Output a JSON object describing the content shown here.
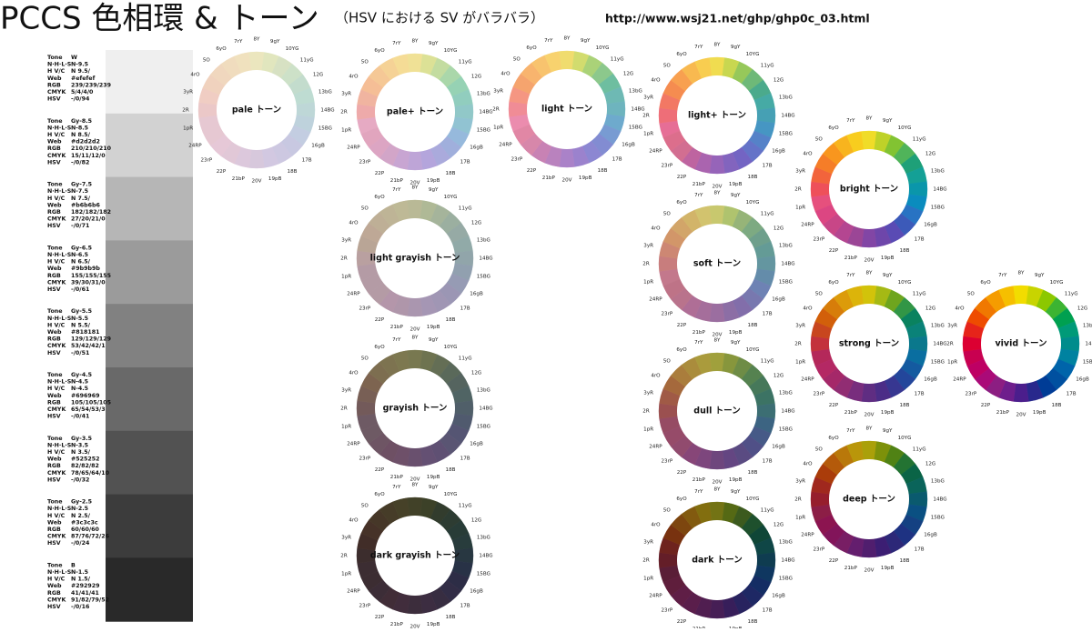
{
  "header": {
    "title": "PCCS 色相環 & トーン",
    "subtitle": "（HSV における SV がバラバラ）",
    "url": "http://www.wsj21.net/ghp/ghp0c_03.html"
  },
  "gray_scale": {
    "field_labels": [
      "Tone",
      "N·H·L·S",
      "H V/C",
      "Web",
      "RGB",
      "CMYK",
      "HSV"
    ],
    "rows": [
      {
        "tone": "W",
        "nhls": "N-9.5",
        "hvc": "N 9.5/",
        "web": "#efefef",
        "rgb": "239/239/239",
        "cmyk": "5/4/4/0",
        "hsv": "-/0/94"
      },
      {
        "tone": "Gy-8.5",
        "nhls": "N-8.5",
        "hvc": "N 8.5/",
        "web": "#d2d2d2",
        "rgb": "210/210/210",
        "cmyk": "15/11/12/0",
        "hsv": "-/0/82"
      },
      {
        "tone": "Gy-7.5",
        "nhls": "N-7.5",
        "hvc": "N 7.5/",
        "web": "#b6b6b6",
        "rgb": "182/182/182",
        "cmyk": "27/20/21/0",
        "hsv": "-/0/71"
      },
      {
        "tone": "Gy-6.5",
        "nhls": "N-6.5",
        "hvc": "N 6.5/",
        "web": "#9b9b9b",
        "rgb": "155/155/155",
        "cmyk": "39/30/31/0",
        "hsv": "-/0/61"
      },
      {
        "tone": "Gy-5.5",
        "nhls": "N-5.5",
        "hvc": "N 5.5/",
        "web": "#818181",
        "rgb": "129/129/129",
        "cmyk": "53/42/42/1",
        "hsv": "-/0/51"
      },
      {
        "tone": "Gy-4.5",
        "nhls": "N-4.5",
        "hvc": "N-4.5",
        "web": "#696969",
        "rgb": "105/105/105",
        "cmyk": "65/54/53/3",
        "hsv": "-/0/41"
      },
      {
        "tone": "Gy-3.5",
        "nhls": "N-3.5",
        "hvc": "N 3.5/",
        "web": "#525252",
        "rgb": "82/82/82",
        "cmyk": "78/65/64/10",
        "hsv": "-/0/32"
      },
      {
        "tone": "Gy-2.5",
        "nhls": "N-2.5",
        "hvc": "N 2.5/",
        "web": "#3c3c3c",
        "rgb": "60/60/60",
        "cmyk": "87/76/72/26",
        "hsv": "-/0/24"
      },
      {
        "tone": "B",
        "nhls": "N-1.5",
        "hvc": "N 1.5/",
        "web": "#292929",
        "rgb": "41/41/41",
        "cmyk": "91/82/79/52",
        "hsv": "-/0/16"
      }
    ]
  },
  "hue_labels": [
    "1pR",
    "2R",
    "3yR",
    "4rO",
    "5O",
    "6yO",
    "7rY",
    "8Y",
    "9gY",
    "10YG",
    "11yG",
    "12G",
    "13bG",
    "14BG",
    "15BG",
    "16gB",
    "17B",
    "18B",
    "19pB",
    "20V",
    "21bP",
    "22P",
    "23rP",
    "24RP"
  ],
  "wheels": [
    {
      "name": "pale トーン",
      "colors": [
        "#e6c8d2",
        "#ebc8c8",
        "#f0cdc3",
        "#f0d2be",
        "#f0d7be",
        "#f0dcbe",
        "#f0e1be",
        "#ebe6be",
        "#e1e6be",
        "#d7e1c3",
        "#cde1c8",
        "#c3dccd",
        "#bedcd2",
        "#bed7d7",
        "#bed2dc",
        "#c3cde1",
        "#c8c8e1",
        "#cdc8e1",
        "#d2c8e1",
        "#d7c8dc",
        "#dcc8dc",
        "#e1c8d7",
        "#e6c8d7",
        "#e6c8d2"
      ]
    },
    {
      "name": "pale+ トーン",
      "colors": [
        "#e6aac3",
        "#eeaaaa",
        "#f0b4a0",
        "#f5be96",
        "#f5c896",
        "#f5d296",
        "#f5dc96",
        "#f0e196",
        "#dce196",
        "#c3dca0",
        "#aad7aa",
        "#96d2b4",
        "#91cdbe",
        "#91c8c8",
        "#91c3d2",
        "#96b9dc",
        "#a0afdc",
        "#aaaadc",
        "#b4a5dc",
        "#bea5d7",
        "#c8a5d2",
        "#d2a5c8",
        "#dca5c3",
        "#e1a5be"
      ]
    },
    {
      "name": "light トーン",
      "colors": [
        "#eb8cae",
        "#f08c96",
        "#f59682",
        "#f5a46e",
        "#f8b46e",
        "#f8c36e",
        "#f8d26e",
        "#f0dc6e",
        "#d2dc6e",
        "#aad278",
        "#8cc88c",
        "#6ebea0",
        "#6eb9b4",
        "#6eb4be",
        "#6eaacd",
        "#789bd2",
        "#828cd2",
        "#8c87d2",
        "#9b82cd",
        "#aa82c8",
        "#b982be",
        "#c882b4",
        "#d787aa",
        "#e187a5"
      ]
    },
    {
      "name": "light+ トーン",
      "colors": [
        "#e66e96",
        "#ee6e78",
        "#f27864",
        "#f58c50",
        "#f8a050",
        "#f8b950",
        "#f8cd50",
        "#f0dc50",
        "#c8d750",
        "#96c85a",
        "#6eb978",
        "#4baa8c",
        "#46aaa5",
        "#46a0b4",
        "#4696c3",
        "#5582c8",
        "#6473c8",
        "#7364c3",
        "#8264be",
        "#9664b9",
        "#aa64af",
        "#be64a0",
        "#d26e91",
        "#dc6e8c"
      ]
    },
    {
      "name": "bright トーン",
      "colors": [
        "#e6507d",
        "#ee505a",
        "#f2643c",
        "#f57d28",
        "#f8961e",
        "#f8b41e",
        "#f8cd1e",
        "#f0dc28",
        "#bed228",
        "#82c332",
        "#50b45a",
        "#1ea078",
        "#14a096",
        "#0a96aa",
        "#0a8cbe",
        "#2873c3",
        "#3c5ab9",
        "#5a4bb4",
        "#6e46aa",
        "#8246a5",
        "#9b4696",
        "#b44691",
        "#c84687",
        "#dc4682"
      ]
    },
    {
      "name": "light grayish トーン",
      "colors": [
        "#b49ba5",
        "#b9a0a0",
        "#b9a596",
        "#bea896",
        "#beaf96",
        "#beb496",
        "#beb996",
        "#b9b996",
        "#afb996",
        "#a5b49b",
        "#9bafa0",
        "#96aaa5",
        "#91aaa8",
        "#91a5aa",
        "#91a0af",
        "#969bb4",
        "#9b96b4",
        "#a096b4",
        "#a596b4",
        "#aa96af",
        "#af96aa",
        "#b496aa",
        "#b49ba5",
        "#b49ba5"
      ]
    },
    {
      "name": "soft トーン",
      "colors": [
        "#c3788c",
        "#c87d7d",
        "#cd8773",
        "#d29669",
        "#d2a569",
        "#d2b469",
        "#d2c36e",
        "#c8c86e",
        "#afc36e",
        "#96b478",
        "#7daa82",
        "#6e9f8c",
        "#649b96",
        "#6496a0",
        "#648caa",
        "#6e82b4",
        "#7878af",
        "#826eaa",
        "#8c6ea5",
        "#9b6ea0",
        "#a56e9b",
        "#af6e96",
        "#b9738c",
        "#be7387"
      ]
    },
    {
      "name": "strong トーン",
      "colors": [
        "#b4285a",
        "#c3323c",
        "#c8461e",
        "#d25f0a",
        "#d77d0a",
        "#dc9b0a",
        "#dcb40a",
        "#d2c30a",
        "#a5b914",
        "#6ea51e",
        "#329646",
        "#0a825f",
        "#0a8278",
        "#0a788c",
        "#0a6ea0",
        "#145aa0",
        "#23469b",
        "#373791",
        "#4b2d87",
        "#5f2d82",
        "#782d7d",
        "#912d73",
        "#a52869",
        "#b42864"
      ]
    },
    {
      "name": "vivid トーン",
      "colors": [
        "#c80050",
        "#dc0032",
        "#e6241a",
        "#ee4c00",
        "#f07800",
        "#f59c00",
        "#f6bf00",
        "#f2dc00",
        "#c8d400",
        "#8cc800",
        "#3cb432",
        "#00a050",
        "#009a78",
        "#008c8c",
        "#0082a0",
        "#0064aa",
        "#0050a0",
        "#003c96",
        "#28288c",
        "#4b1e8c",
        "#6e1e8c",
        "#8c1e82",
        "#aa0a78",
        "#be0064"
      ]
    },
    {
      "name": "grayish トーン",
      "colors": [
        "#6e5a64",
        "#735a5a",
        "#785f55",
        "#7d6450",
        "#7d6e50",
        "#7d7350",
        "#7d7850",
        "#787850",
        "#6e7350",
        "#646e55",
        "#5a695a",
        "#55645f",
        "#506464",
        "#505f69",
        "#505a6e",
        "#555573",
        "#5a5573",
        "#5f5073",
        "#645073",
        "#69506e",
        "#6e5069",
        "#6e5064",
        "#6e5564",
        "#6e5a64"
      ]
    },
    {
      "name": "dull トーン",
      "colors": [
        "#964b64",
        "#9b5050",
        "#a05a46",
        "#a5693c",
        "#aa7d3c",
        "#aa8c3c",
        "#aa9b3c",
        "#a0a03c",
        "#87963c",
        "#6e8c46",
        "#558250",
        "#46785a",
        "#3c7364",
        "#3c6e73",
        "#3c6482",
        "#465a87",
        "#505087",
        "#5a4b82",
        "#644682",
        "#6e467d",
        "#7d467d",
        "#874678",
        "#914b6e",
        "#964b69"
      ]
    },
    {
      "name": "deep トーン",
      "colors": [
        "#8c1e46",
        "#961e2d",
        "#a0281e",
        "#aa3c0a",
        "#b45a0a",
        "#b9780a",
        "#b9960a",
        "#aaa00a",
        "#7d910a",
        "#508214",
        "#237332",
        "#0a6446",
        "#0a645a",
        "#0a5a6e",
        "#0a5082",
        "#144182",
        "#1e3282",
        "#2d2878",
        "#3c1e73",
        "#501e6e",
        "#641e6e",
        "#781e64",
        "#82145a",
        "#8c1450"
      ]
    },
    {
      "name": "dark grayish トーン",
      "colors": [
        "#3c2d32",
        "#3c2d2d",
        "#412d28",
        "#463228",
        "#463728",
        "#463c28",
        "#464128",
        "#414128",
        "#3c4128",
        "#323c2d",
        "#2d3c32",
        "#283c37",
        "#283c3c",
        "#283741",
        "#283246",
        "#2d2d46",
        "#322d46",
        "#372d41",
        "#3c2d41",
        "#3c2d3c",
        "#412d3c",
        "#412d37",
        "#3c2d37",
        "#3c2d32"
      ]
    },
    {
      "name": "dark トーン",
      "colors": [
        "#5a1e37",
        "#641e28",
        "#6e231e",
        "#78320f",
        "#7d460f",
        "#825a0f",
        "#826e0f",
        "#737314",
        "#556914",
        "#3c5a1e",
        "#1e502d",
        "#0f4637",
        "#0f4646",
        "#0f3c50",
        "#0f3760",
        "#142d64",
        "#1e2864",
        "#28235f",
        "#371e5a",
        "#461e55",
        "#501e50",
        "#5a1e4b",
        "#5f1e46",
        "#5f1e3c"
      ]
    }
  ]
}
